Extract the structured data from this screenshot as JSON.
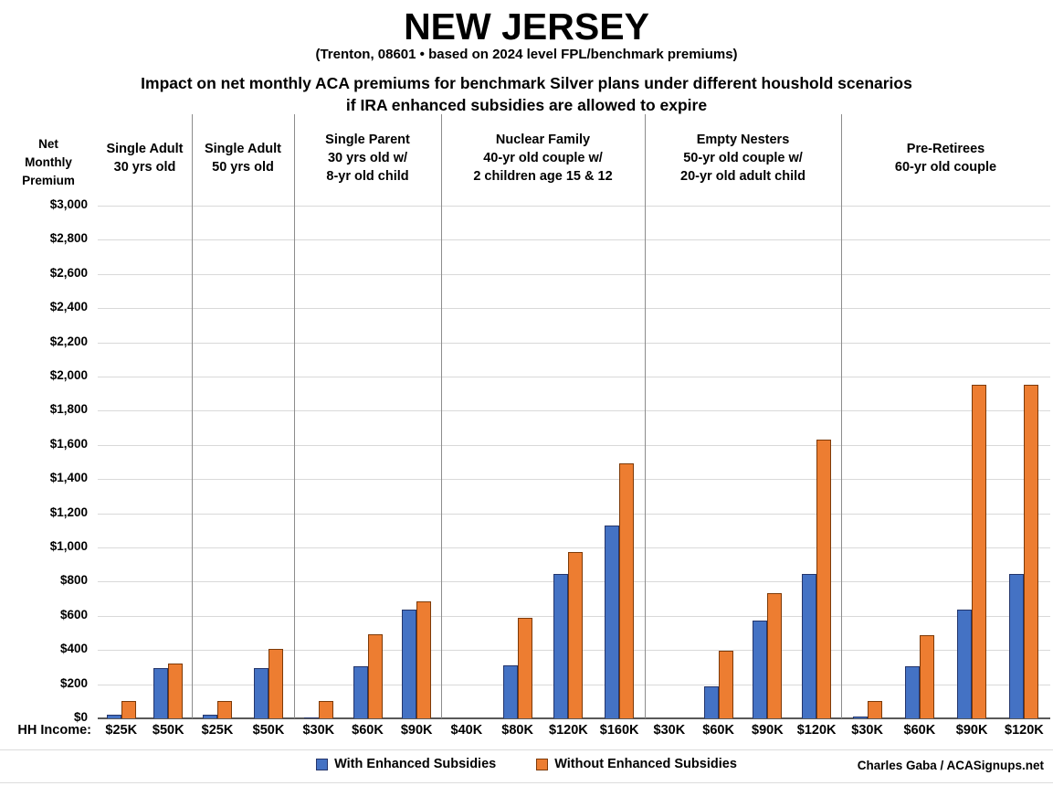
{
  "title": "NEW JERSEY",
  "subtitle": "(Trenton, 08601 • based on 2024 level FPL/benchmark premiums)",
  "heading_line1": "Impact on net monthly ACA premiums for benchmark Silver plans under different houshold scenarios",
  "heading_line2": "if IRA enhanced subsidies are allowed to expire",
  "y_axis_title": [
    "Net",
    "Monthly",
    "Premium"
  ],
  "x_axis_label": "HH Income:",
  "credit": "Charles Gaba / ACASignups.net",
  "chart_data": {
    "type": "bar",
    "title": "Impact on net monthly ACA premiums for benchmark Silver plans under different houshold scenarios if IRA enhanced subsidies are allowed to expire",
    "ylabel": "Net Monthly Premium",
    "xlabel": "HH Income:",
    "ylim": [
      0,
      3000
    ],
    "ytick_step": 200,
    "ytick_labels": [
      "$0",
      "$200",
      "$400",
      "$600",
      "$800",
      "$1,000",
      "$1,200",
      "$1,400",
      "$1,600",
      "$1,800",
      "$2,000",
      "$2,200",
      "$2,400",
      "$2,600",
      "$2,800",
      "$3,000"
    ],
    "grid": true,
    "legend_position": "bottom",
    "series": [
      {
        "key": "with_enhanced",
        "name": "With Enhanced Subsidies",
        "color": "#4472C4",
        "border": "#24356b"
      },
      {
        "key": "without_enhanced",
        "name": "Without Enhanced Subsidies",
        "color": "#ED7D31",
        "border": "#7d3a08"
      }
    ],
    "groups": [
      {
        "title_lines": [
          "Single Adult",
          "30 yrs old"
        ],
        "categories": [
          "$25K",
          "$50K"
        ],
        "values": {
          "with_enhanced": [
            20,
            295
          ],
          "without_enhanced": [
            100,
            320
          ]
        }
      },
      {
        "title_lines": [
          "Single Adult",
          "50 yrs old"
        ],
        "categories": [
          "$25K",
          "$50K"
        ],
        "values": {
          "with_enhanced": [
            20,
            295
          ],
          "without_enhanced": [
            100,
            405
          ]
        }
      },
      {
        "title_lines": [
          "Single Parent",
          "30 yrs old w/",
          "8-yr old child"
        ],
        "categories": [
          "$30K",
          "$60K",
          "$90K"
        ],
        "values": {
          "with_enhanced": [
            5,
            305,
            635
          ],
          "without_enhanced": [
            100,
            490,
            685
          ]
        }
      },
      {
        "title_lines": [
          "Nuclear Family",
          "40-yr old couple w/",
          "2 children age 15 & 12"
        ],
        "categories": [
          "$40K",
          "$80K",
          "$120K",
          "$160K"
        ],
        "values": {
          "with_enhanced": [
            0,
            310,
            845,
            1130
          ],
          "without_enhanced": [
            0,
            590,
            975,
            1490
          ]
        }
      },
      {
        "title_lines": [
          "Empty Nesters",
          "50-yr old couple w/",
          "20-yr old adult child"
        ],
        "categories": [
          "$30K",
          "$60K",
          "$90K",
          "$120K"
        ],
        "values": {
          "with_enhanced": [
            0,
            185,
            570,
            845
          ],
          "without_enhanced": [
            0,
            395,
            730,
            1630
          ]
        }
      },
      {
        "title_lines": [
          "Pre-Retirees",
          "60-yr old couple"
        ],
        "categories": [
          "$30K",
          "$60K",
          "$90K",
          "$120K"
        ],
        "values": {
          "with_enhanced": [
            10,
            305,
            635,
            845
          ],
          "without_enhanced": [
            100,
            485,
            1950,
            1950
          ]
        }
      }
    ]
  }
}
